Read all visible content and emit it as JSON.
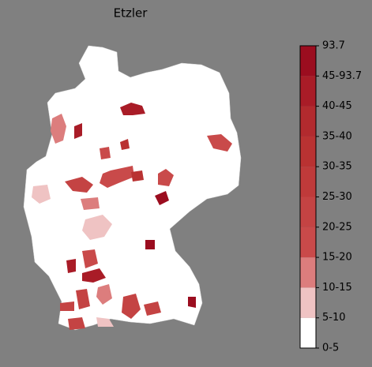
{
  "title": "Etzler",
  "colorbar": {
    "labels": [
      "0-5",
      "5-10",
      "10-15",
      "15-20",
      "20-25",
      "25-30",
      "30-35",
      "35-40",
      "40-45",
      "45-93.7",
      "93.7"
    ],
    "colors": [
      "#ffffff",
      "#efc3c3",
      "#dc7d7d",
      "#c94a4a",
      "#c44343",
      "#bf3a3a",
      "#b93232",
      "#b22a2e",
      "#a91c27",
      "#9b0d1f"
    ]
  }
}
